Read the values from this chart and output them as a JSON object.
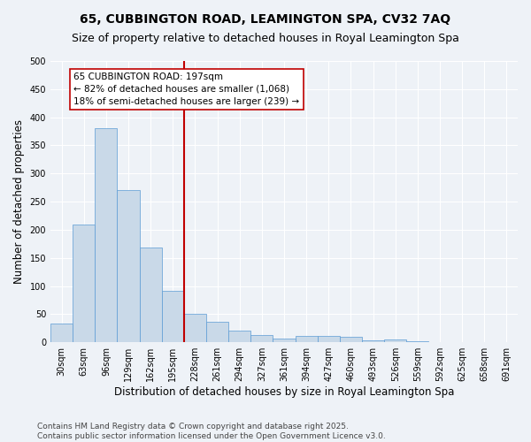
{
  "title1": "65, CUBBINGTON ROAD, LEAMINGTON SPA, CV32 7AQ",
  "title2": "Size of property relative to detached houses in Royal Leamington Spa",
  "xlabel": "Distribution of detached houses by size in Royal Leamington Spa",
  "ylabel": "Number of detached properties",
  "bins": [
    "30sqm",
    "63sqm",
    "96sqm",
    "129sqm",
    "162sqm",
    "195sqm",
    "228sqm",
    "261sqm",
    "294sqm",
    "327sqm",
    "361sqm",
    "394sqm",
    "427sqm",
    "460sqm",
    "493sqm",
    "526sqm",
    "559sqm",
    "592sqm",
    "625sqm",
    "658sqm",
    "691sqm"
  ],
  "values": [
    33,
    210,
    380,
    270,
    168,
    91,
    51,
    37,
    21,
    13,
    7,
    11,
    11,
    9,
    4,
    5,
    2,
    1,
    1,
    1,
    0
  ],
  "bar_color": "#c9d9e8",
  "bar_edge_color": "#5b9bd5",
  "vline_pos": 5.5,
  "vline_color": "#c00000",
  "annotation_text": "65 CUBBINGTON ROAD: 197sqm\n← 82% of detached houses are smaller (1,068)\n18% of semi-detached houses are larger (239) →",
  "annotation_box_color": "#ffffff",
  "annotation_box_edge": "#c00000",
  "ylim": [
    0,
    500
  ],
  "yticks": [
    0,
    50,
    100,
    150,
    200,
    250,
    300,
    350,
    400,
    450,
    500
  ],
  "footer": "Contains HM Land Registry data © Crown copyright and database right 2025.\nContains public sector information licensed under the Open Government Licence v3.0.",
  "bg_color": "#eef2f7",
  "grid_color": "#ffffff",
  "title1_fontsize": 10,
  "title2_fontsize": 9,
  "tick_fontsize": 7,
  "label_fontsize": 8.5,
  "footer_fontsize": 6.5,
  "ann_fontsize": 7.5
}
